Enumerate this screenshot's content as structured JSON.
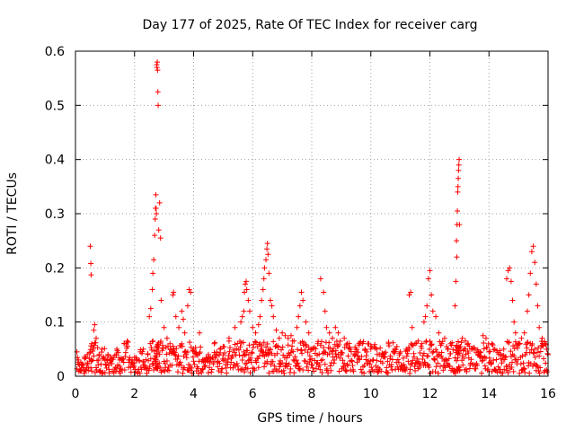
{
  "chart_data": {
    "type": "scatter",
    "title": "Day 177 of 2025, Rate Of TEC Index for receiver carg",
    "xlabel": "GPS time / hours",
    "ylabel": "ROTI / TECUs",
    "xlim": [
      0,
      16
    ],
    "ylim": [
      0,
      0.6
    ],
    "x_ticks": [
      "0",
      "2",
      "4",
      "6",
      "8",
      "10",
      "12",
      "14",
      "16"
    ],
    "y_ticks": [
      "0",
      "0.1",
      "0.2",
      "0.3",
      "0.4",
      "0.5",
      "0.6"
    ],
    "grid": true,
    "marker": "+",
    "color": "#ff0000",
    "series": [
      {
        "name": "ROTI",
        "points": [
          [
            0.05,
            0.045
          ],
          [
            0.1,
            0.03
          ],
          [
            0.2,
            0.02
          ],
          [
            0.3,
            0.035
          ],
          [
            0.4,
            0.04
          ],
          [
            0.5,
            0.24
          ],
          [
            0.52,
            0.208
          ],
          [
            0.53,
            0.187
          ],
          [
            0.55,
            0.06
          ],
          [
            0.6,
            0.05
          ],
          [
            0.62,
            0.085
          ],
          [
            0.65,
            0.095
          ],
          [
            0.7,
            0.07
          ],
          [
            0.8,
            0.04
          ],
          [
            0.9,
            0.05
          ],
          [
            1.0,
            0.03
          ],
          [
            1.1,
            0.04
          ],
          [
            1.2,
            0.035
          ],
          [
            1.4,
            0.05
          ],
          [
            1.5,
            0.03
          ],
          [
            1.65,
            0.06
          ],
          [
            1.8,
            0.03
          ],
          [
            2.0,
            0.035
          ],
          [
            2.2,
            0.045
          ],
          [
            2.3,
            0.05
          ],
          [
            2.45,
            0.04
          ],
          [
            2.5,
            0.11
          ],
          [
            2.55,
            0.125
          ],
          [
            2.6,
            0.16
          ],
          [
            2.62,
            0.19
          ],
          [
            2.65,
            0.215
          ],
          [
            2.68,
            0.26
          ],
          [
            2.7,
            0.29
          ],
          [
            2.71,
            0.31
          ],
          [
            2.72,
            0.335
          ],
          [
            2.73,
            0.31
          ],
          [
            2.74,
            0.3
          ],
          [
            2.75,
            0.575
          ],
          [
            2.76,
            0.57
          ],
          [
            2.77,
            0.58
          ],
          [
            2.78,
            0.565
          ],
          [
            2.79,
            0.525
          ],
          [
            2.8,
            0.5
          ],
          [
            2.82,
            0.27
          ],
          [
            2.85,
            0.32
          ],
          [
            2.88,
            0.255
          ],
          [
            2.9,
            0.14
          ],
          [
            3.0,
            0.09
          ],
          [
            3.1,
            0.07
          ],
          [
            3.2,
            0.06
          ],
          [
            3.3,
            0.15
          ],
          [
            3.32,
            0.155
          ],
          [
            3.4,
            0.11
          ],
          [
            3.5,
            0.09
          ],
          [
            3.6,
            0.12
          ],
          [
            3.65,
            0.105
          ],
          [
            3.7,
            0.08
          ],
          [
            3.8,
            0.13
          ],
          [
            3.85,
            0.16
          ],
          [
            3.9,
            0.155
          ],
          [
            4.0,
            0.05
          ],
          [
            4.1,
            0.04
          ],
          [
            4.2,
            0.08
          ],
          [
            4.3,
            0.03
          ],
          [
            4.5,
            0.04
          ],
          [
            4.7,
            0.06
          ],
          [
            4.9,
            0.05
          ],
          [
            5.0,
            0.055
          ],
          [
            5.2,
            0.07
          ],
          [
            5.4,
            0.09
          ],
          [
            5.6,
            0.1
          ],
          [
            5.65,
            0.11
          ],
          [
            5.7,
            0.12
          ],
          [
            5.72,
            0.155
          ],
          [
            5.75,
            0.17
          ],
          [
            5.78,
            0.175
          ],
          [
            5.8,
            0.16
          ],
          [
            5.85,
            0.14
          ],
          [
            5.9,
            0.12
          ],
          [
            6.0,
            0.09
          ],
          [
            6.1,
            0.08
          ],
          [
            6.2,
            0.095
          ],
          [
            6.25,
            0.11
          ],
          [
            6.3,
            0.14
          ],
          [
            6.35,
            0.16
          ],
          [
            6.38,
            0.18
          ],
          [
            6.4,
            0.2
          ],
          [
            6.45,
            0.215
          ],
          [
            6.48,
            0.235
          ],
          [
            6.5,
            0.245
          ],
          [
            6.52,
            0.225
          ],
          [
            6.55,
            0.19
          ],
          [
            6.6,
            0.14
          ],
          [
            6.65,
            0.13
          ],
          [
            6.7,
            0.11
          ],
          [
            6.8,
            0.085
          ],
          [
            6.9,
            0.07
          ],
          [
            7.0,
            0.08
          ],
          [
            7.1,
            0.075
          ],
          [
            7.2,
            0.07
          ],
          [
            7.3,
            0.075
          ],
          [
            7.4,
            0.065
          ],
          [
            7.5,
            0.09
          ],
          [
            7.55,
            0.11
          ],
          [
            7.6,
            0.13
          ],
          [
            7.65,
            0.155
          ],
          [
            7.7,
            0.14
          ],
          [
            7.8,
            0.1
          ],
          [
            7.9,
            0.08
          ],
          [
            8.0,
            0.05
          ],
          [
            8.2,
            0.06
          ],
          [
            8.3,
            0.18
          ],
          [
            8.4,
            0.155
          ],
          [
            8.45,
            0.12
          ],
          [
            8.5,
            0.09
          ],
          [
            8.6,
            0.08
          ],
          [
            8.7,
            0.07
          ],
          [
            8.8,
            0.09
          ],
          [
            8.9,
            0.08
          ],
          [
            9.0,
            0.04
          ],
          [
            9.1,
            0.07
          ],
          [
            9.2,
            0.06
          ],
          [
            9.3,
            0.05
          ],
          [
            9.5,
            0.05
          ],
          [
            9.6,
            0.06
          ],
          [
            9.8,
            0.05
          ],
          [
            9.9,
            0.06
          ],
          [
            10.0,
            0.055
          ],
          [
            10.2,
            0.05
          ],
          [
            10.4,
            0.04
          ],
          [
            10.6,
            0.06
          ],
          [
            10.8,
            0.05
          ],
          [
            11.0,
            0.045
          ],
          [
            11.2,
            0.05
          ],
          [
            11.3,
            0.15
          ],
          [
            11.35,
            0.155
          ],
          [
            11.4,
            0.09
          ],
          [
            11.5,
            0.06
          ],
          [
            11.6,
            0.065
          ],
          [
            11.8,
            0.1
          ],
          [
            11.85,
            0.11
          ],
          [
            11.9,
            0.13
          ],
          [
            11.95,
            0.18
          ],
          [
            12.0,
            0.195
          ],
          [
            12.05,
            0.15
          ],
          [
            12.1,
            0.12
          ],
          [
            12.2,
            0.11
          ],
          [
            12.3,
            0.08
          ],
          [
            12.4,
            0.06
          ],
          [
            12.5,
            0.07
          ],
          [
            12.6,
            0.05
          ],
          [
            12.7,
            0.06
          ],
          [
            12.85,
            0.13
          ],
          [
            12.88,
            0.175
          ],
          [
            12.9,
            0.25
          ],
          [
            12.91,
            0.22
          ],
          [
            12.92,
            0.28
          ],
          [
            12.93,
            0.305
          ],
          [
            12.94,
            0.34
          ],
          [
            12.95,
            0.35
          ],
          [
            12.96,
            0.365
          ],
          [
            12.97,
            0.38
          ],
          [
            12.98,
            0.39
          ],
          [
            12.99,
            0.4
          ],
          [
            13.0,
            0.28
          ],
          [
            13.1,
            0.07
          ],
          [
            13.2,
            0.065
          ],
          [
            13.3,
            0.06
          ],
          [
            13.5,
            0.05
          ],
          [
            13.7,
            0.045
          ],
          [
            13.8,
            0.075
          ],
          [
            13.9,
            0.07
          ],
          [
            14.0,
            0.045
          ],
          [
            14.1,
            0.06
          ],
          [
            14.2,
            0.05
          ],
          [
            14.4,
            0.04
          ],
          [
            14.5,
            0.05
          ],
          [
            14.6,
            0.18
          ],
          [
            14.65,
            0.195
          ],
          [
            14.7,
            0.2
          ],
          [
            14.75,
            0.175
          ],
          [
            14.8,
            0.14
          ],
          [
            14.85,
            0.1
          ],
          [
            14.9,
            0.08
          ],
          [
            15.0,
            0.06
          ],
          [
            15.1,
            0.07
          ],
          [
            15.2,
            0.08
          ],
          [
            15.3,
            0.12
          ],
          [
            15.35,
            0.15
          ],
          [
            15.4,
            0.19
          ],
          [
            15.45,
            0.23
          ],
          [
            15.5,
            0.24
          ],
          [
            15.55,
            0.21
          ],
          [
            15.6,
            0.17
          ],
          [
            15.65,
            0.13
          ],
          [
            15.7,
            0.09
          ],
          [
            15.8,
            0.07
          ],
          [
            15.9,
            0.06
          ],
          [
            15.95,
            0.05
          ],
          [
            16.0,
            0.04
          ]
        ]
      }
    ]
  }
}
